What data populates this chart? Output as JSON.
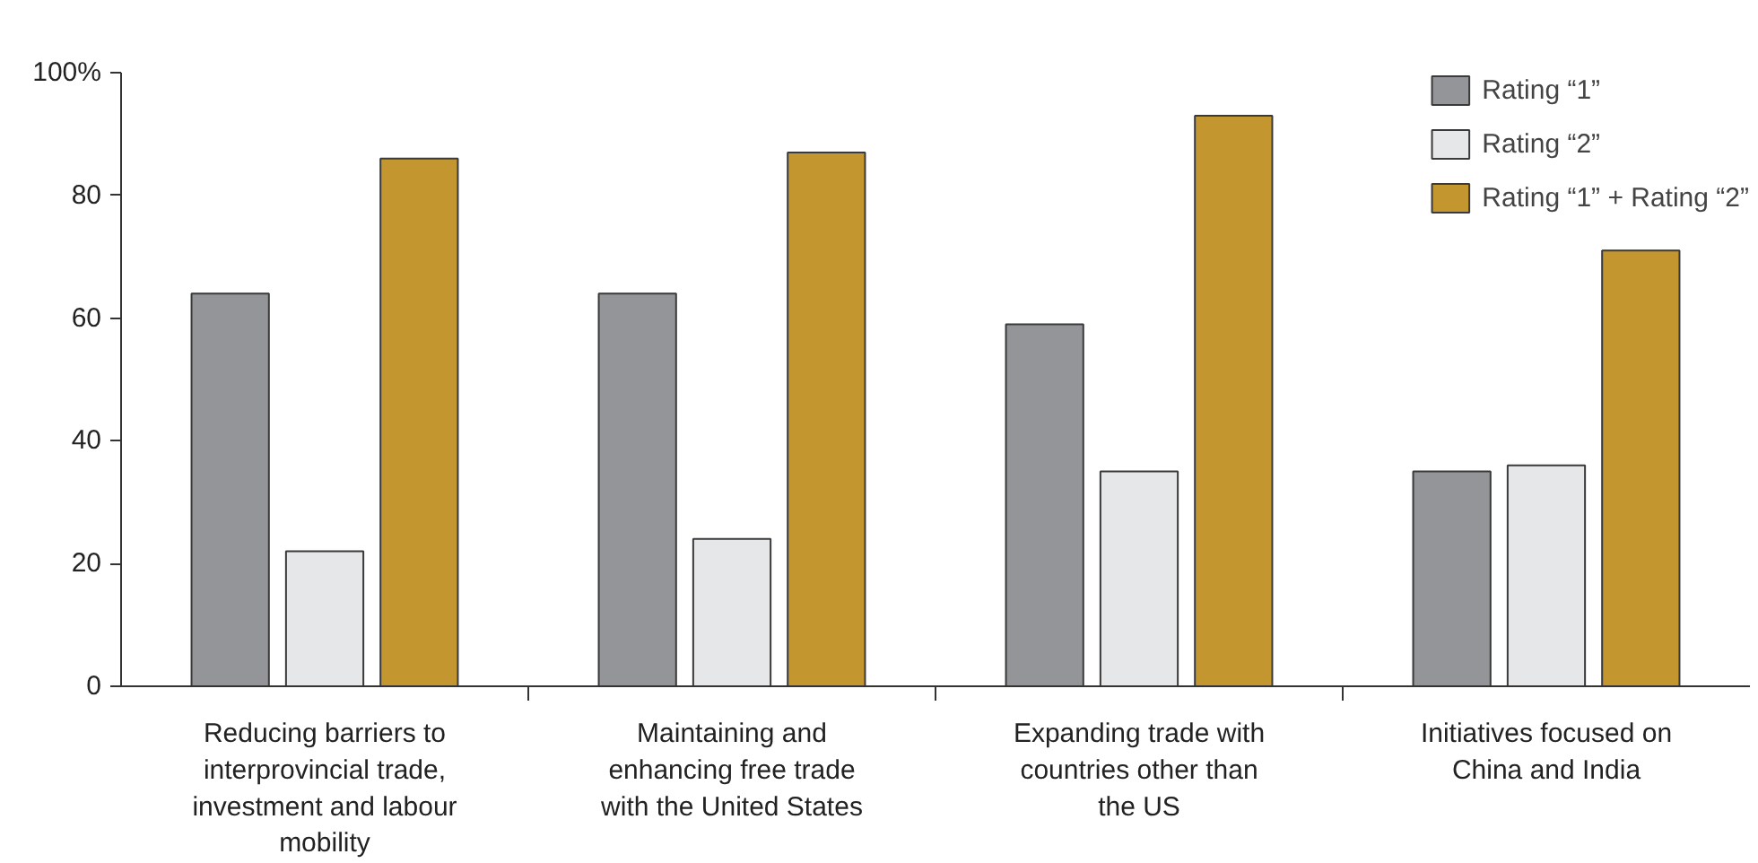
{
  "chart_data": {
    "type": "bar",
    "categories": [
      "Reducing barriers to interprovincial trade, investment and labour mobility",
      "Maintaining and enhancing free trade with the United States",
      "Expanding trade with countries other than the US",
      "Initiatives focused on China and India"
    ],
    "series": [
      {
        "name": "Rating “1”",
        "color": "#939598",
        "values": [
          64,
          64,
          59,
          35
        ]
      },
      {
        "name": "Rating “2”",
        "color": "#e6e7e8",
        "values": [
          22,
          24,
          35,
          36
        ]
      },
      {
        "name": "Rating “1” + Rating “2”",
        "color": "#c4962f",
        "values": [
          86,
          87,
          93,
          71
        ]
      }
    ],
    "ylim": [
      0,
      100
    ],
    "yticks": [
      0,
      20,
      40,
      60,
      80,
      {
        "value": 100,
        "label": "100%"
      }
    ],
    "grid": false,
    "legend": "top right"
  }
}
